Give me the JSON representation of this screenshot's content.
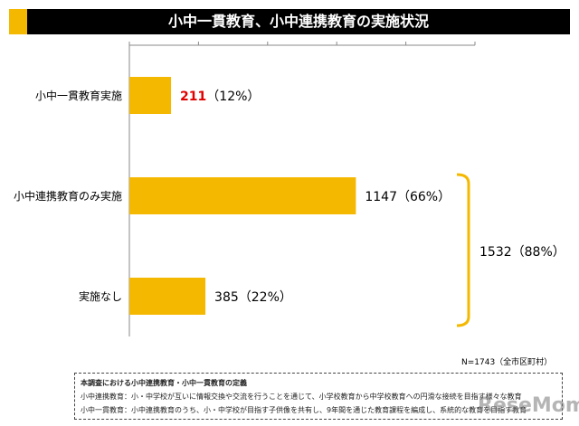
{
  "title": "小中一貫教育、小中連携教育の実施状況",
  "chart_data": {
    "type": "bar",
    "orientation": "horizontal",
    "categories": [
      "小中一貫教育実施",
      "小中連携教育のみ実施",
      "実施なし"
    ],
    "values": [
      211,
      1147,
      385
    ],
    "data_labels": [
      "211（12%）",
      "1147（66%）",
      "385（22%）"
    ],
    "highlight_label_color": "#e00000",
    "bar_color": "#f5b800",
    "bracket_label": "1532（88%）",
    "xlim": [
      0,
      1750
    ],
    "grid": false
  },
  "sample_note": "N=1743（全市区町村）",
  "definition": {
    "heading": "本調査における小中連携教育・小中一貫教育の定義",
    "lines": [
      "小中連携教育：小・中学校が互いに情報交換や交流を行うことを通じて、小学校教育から中学校教育への円滑な接続を目指す様々な教育",
      "小中一貫教育：小中連携教育のうち、小・中学校が目指す子供像を共有し、9年間を通じた教育課程を編成し、系統的な教育を目指す教育"
    ]
  },
  "watermark": "ReseMom"
}
